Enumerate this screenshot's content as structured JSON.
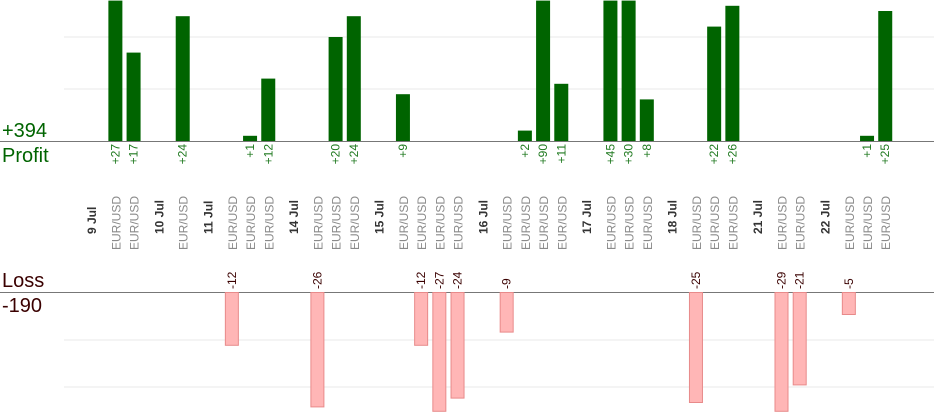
{
  "chart_data": {
    "type": "bar",
    "profit": {
      "total_label": "+394",
      "title": "Profit",
      "color": "#006400",
      "label_color": "#207a20"
    },
    "loss": {
      "title": "Loss",
      "total_label": "-190",
      "color": "#ffb6b6",
      "border_color": "#e88a8a",
      "label_color": "#3a0000"
    },
    "symbol_color": "#8a8a8a",
    "date_color": "#333333",
    "grid": true,
    "groups": [
      {
        "date": "9 Jul",
        "trades": [
          27,
          17
        ]
      },
      {
        "date": "10 Jul",
        "trades": [
          24
        ]
      },
      {
        "date": "11 Jul",
        "trades": [
          -12,
          1,
          12
        ]
      },
      {
        "date": "14 Jul",
        "trades": [
          -26,
          20,
          24
        ]
      },
      {
        "date": "15 Jul",
        "trades": [
          9,
          -12,
          -27,
          -24
        ]
      },
      {
        "date": "16 Jul",
        "trades": [
          -9,
          2,
          90,
          11
        ]
      },
      {
        "date": "17 Jul",
        "trades": [
          45,
          30,
          8
        ]
      },
      {
        "date": "18 Jul",
        "trades": [
          -25,
          22,
          26
        ]
      },
      {
        "date": "21 Jul",
        "trades": [
          -29,
          -21
        ]
      },
      {
        "date": "22 Jul",
        "trades": [
          -5,
          1,
          25
        ]
      }
    ],
    "symbol": "EUR/USD",
    "y_display_max": 27
  }
}
